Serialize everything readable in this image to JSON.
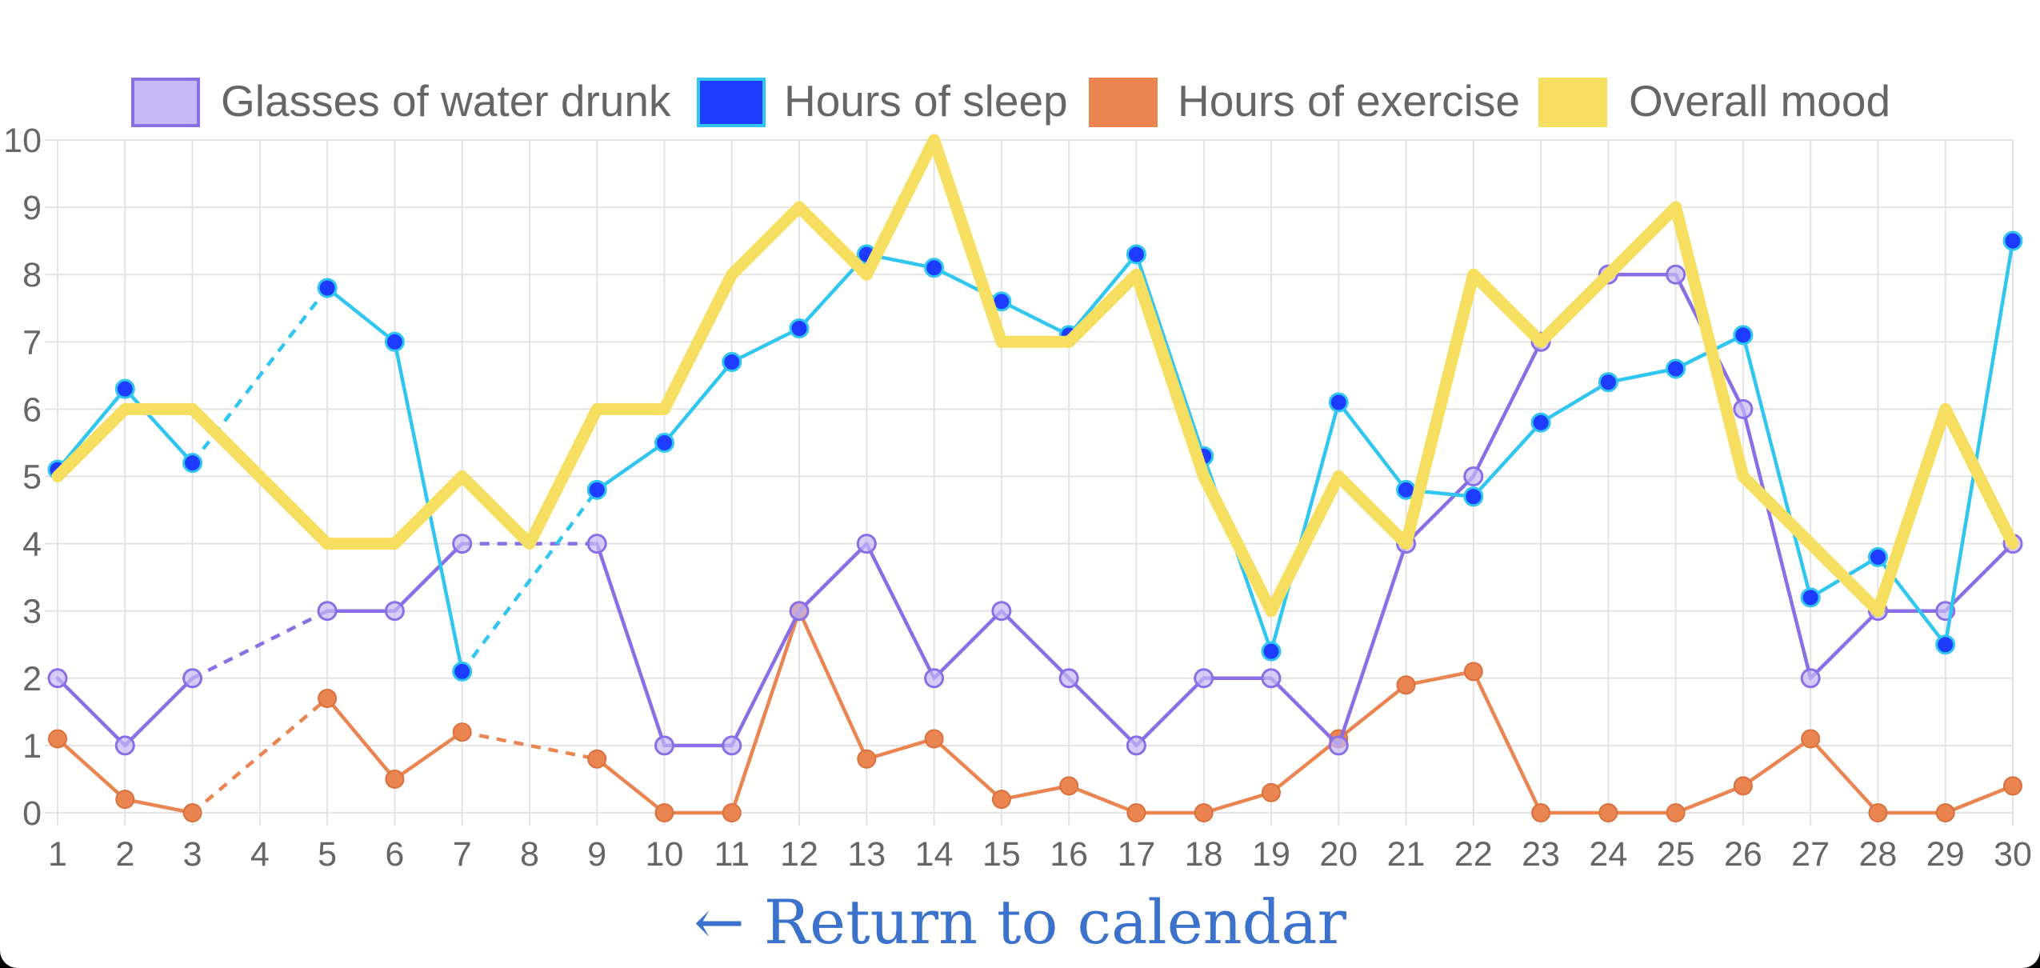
{
  "chart_data": {
    "type": "line",
    "x": [
      1,
      2,
      3,
      4,
      5,
      6,
      7,
      8,
      9,
      10,
      11,
      12,
      13,
      14,
      15,
      16,
      17,
      18,
      19,
      20,
      21,
      22,
      23,
      24,
      25,
      26,
      27,
      28,
      29,
      30
    ],
    "ylim": [
      0,
      10
    ],
    "yticks": [
      0,
      1,
      2,
      3,
      4,
      5,
      6,
      7,
      8,
      9,
      10
    ],
    "grid": true,
    "legend_position": "top",
    "series": [
      {
        "name": "Glasses of water drunk",
        "key": "water",
        "color": "#8a6ee6",
        "fill": "#c5b9f5",
        "values": [
          2,
          1,
          2,
          null,
          3,
          3,
          4,
          null,
          4,
          1,
          1,
          3,
          4,
          2,
          3,
          2,
          1,
          2,
          2,
          1,
          4,
          5,
          7,
          8,
          8,
          6,
          2,
          3,
          3,
          4
        ]
      },
      {
        "name": "Hours of sleep",
        "key": "sleep",
        "color": "#30c6ef",
        "fill": "#1e3cff",
        "values": [
          5.1,
          6.3,
          5.2,
          null,
          7.8,
          7,
          2.1,
          null,
          4.8,
          5.5,
          6.7,
          7.2,
          8.3,
          8.1,
          7.6,
          7.1,
          8.3,
          5.3,
          2.4,
          6.1,
          4.8,
          4.7,
          5.8,
          6.4,
          6.6,
          7.1,
          3.2,
          3.8,
          2.5,
          8.5
        ]
      },
      {
        "name": "Hours of exercise",
        "key": "exercise",
        "color": "#ea8451",
        "fill": "#ea8451",
        "values": [
          1.1,
          0.2,
          0,
          null,
          1.7,
          0.5,
          1.2,
          null,
          0.8,
          0,
          0,
          3,
          0.8,
          1.1,
          0.2,
          0.4,
          0,
          0,
          0.3,
          1.1,
          1.9,
          2.1,
          0,
          0,
          0,
          0.4,
          1.1,
          0,
          0,
          0.4
        ]
      },
      {
        "name": "Overall mood",
        "key": "mood",
        "color": "#f6df60",
        "fill": "#f6df60",
        "values": [
          5,
          6,
          6,
          5,
          4,
          4,
          5,
          4,
          6,
          6,
          8,
          9,
          8,
          10,
          7,
          7,
          8,
          5,
          3,
          5,
          4,
          8,
          7,
          8,
          9,
          5,
          4,
          3,
          6,
          4
        ]
      }
    ]
  },
  "link": {
    "label": "← Return to calendar"
  }
}
